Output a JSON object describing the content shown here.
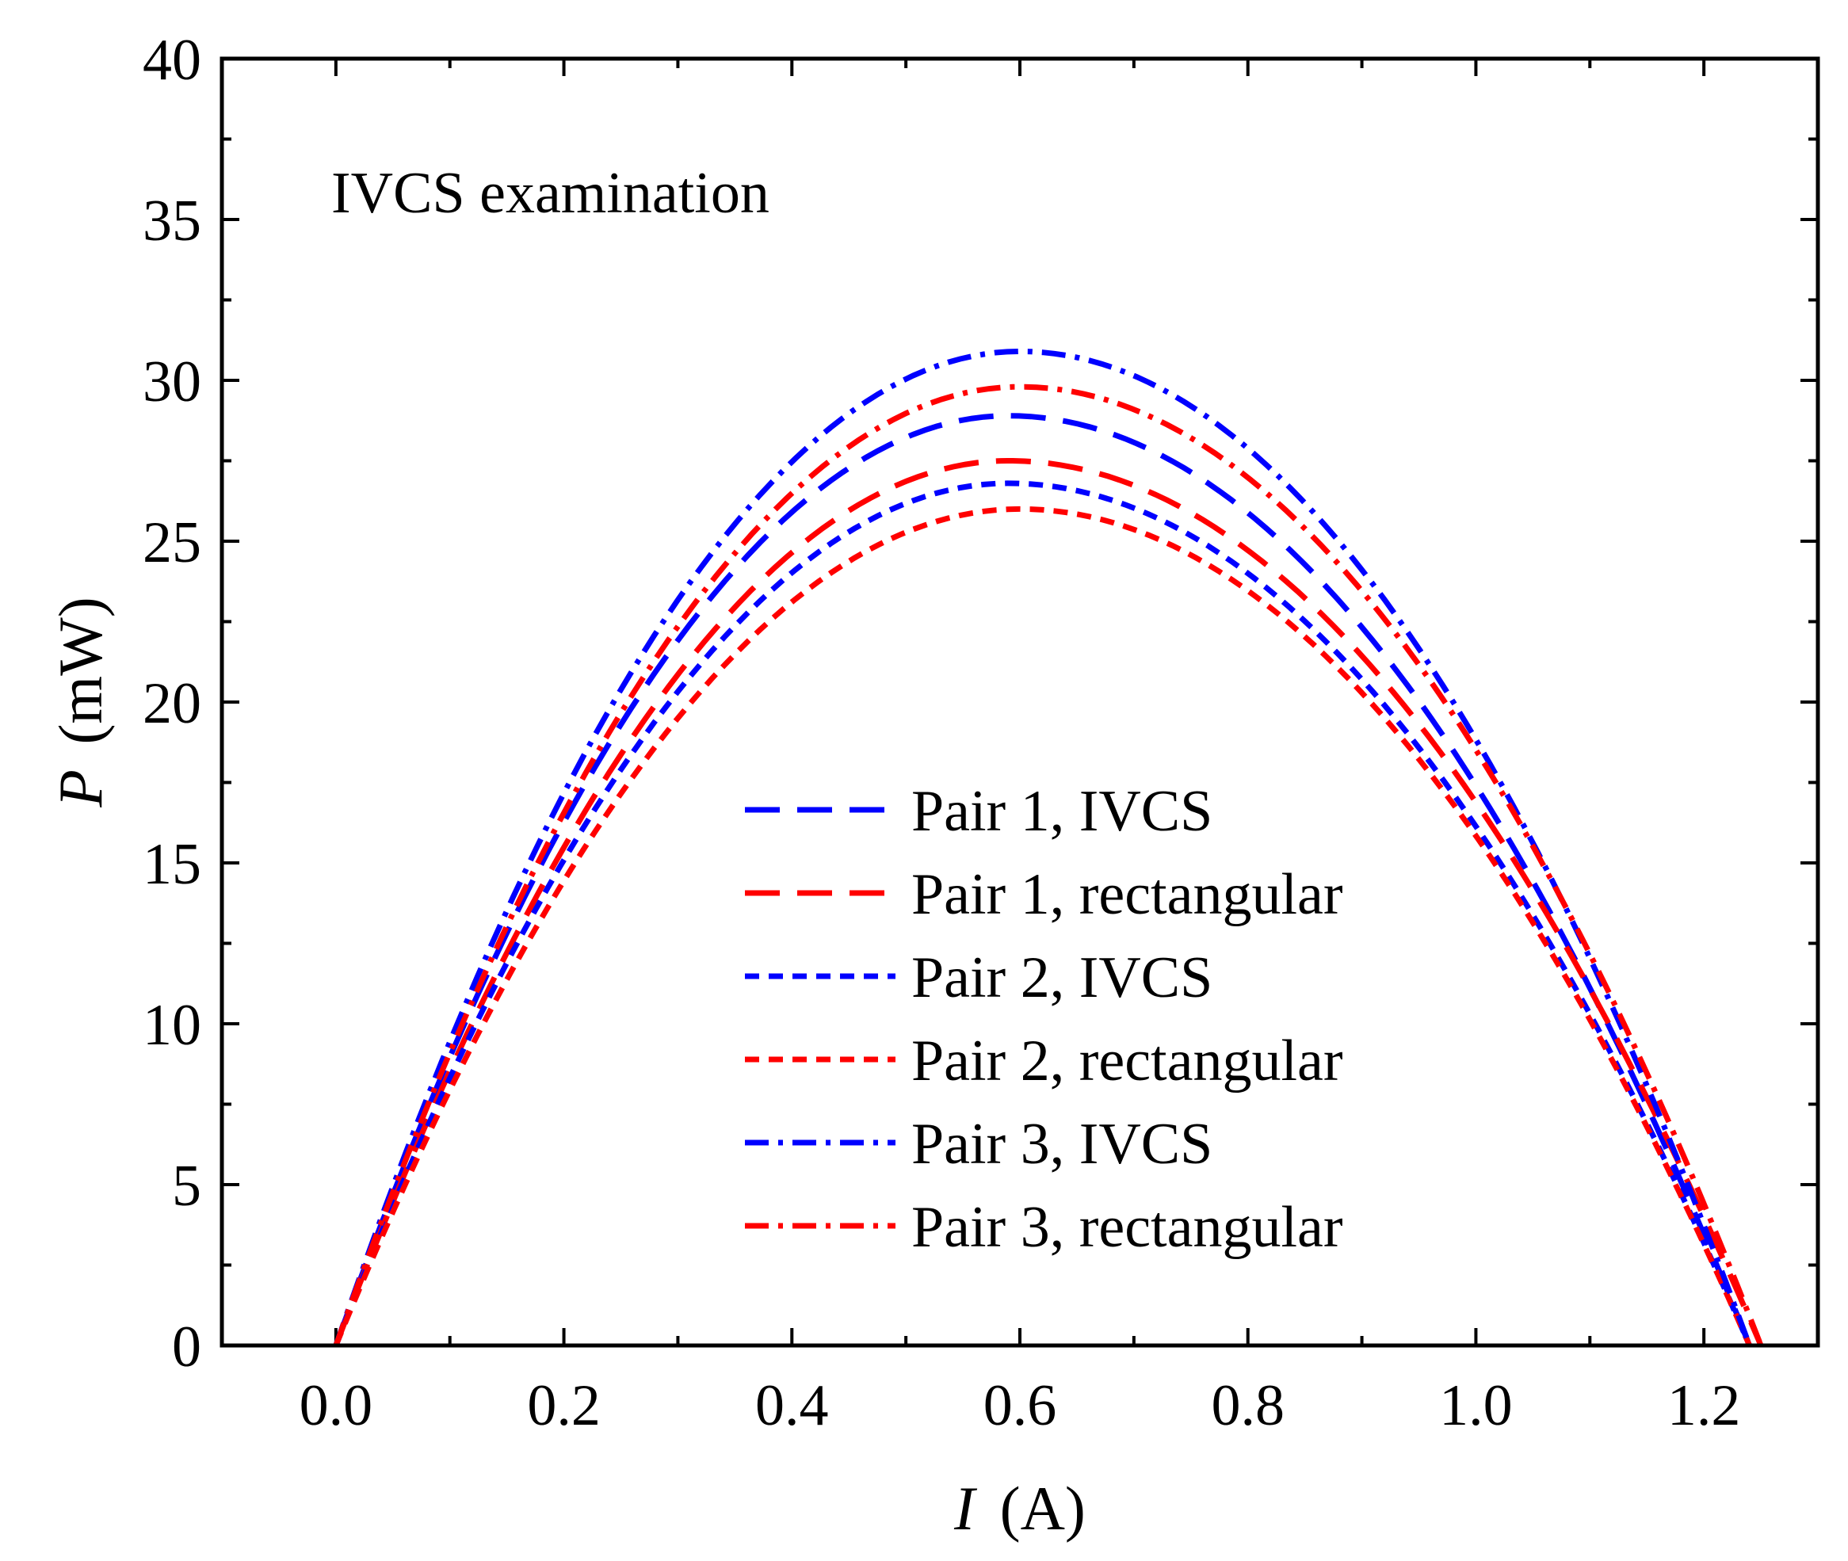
{
  "chart_data": {
    "type": "line",
    "annotation": "IVCS examination",
    "xlabel": {
      "symbol": "I",
      "unit": "(A)"
    },
    "ylabel": {
      "symbol": "P",
      "unit": "(mW)"
    },
    "xlim": [
      -0.1,
      1.3
    ],
    "ylim": [
      0,
      40
    ],
    "xticks": [
      0.0,
      0.2,
      0.4,
      0.6,
      0.8,
      1.0,
      1.2
    ],
    "xtick_labels": [
      "0.0",
      "0.2",
      "0.4",
      "0.6",
      "0.8",
      "1.0",
      "1.2"
    ],
    "yticks": [
      0,
      5,
      10,
      15,
      20,
      25,
      30,
      35,
      40
    ],
    "ytick_labels": [
      "0",
      "5",
      "10",
      "15",
      "20",
      "25",
      "30",
      "35",
      "40"
    ],
    "legend_position": "center-right",
    "grid": false,
    "series": [
      {
        "name": "Pair 1, IVCS",
        "color": "#0000ff",
        "style": "dash",
        "peak_x": 0.59,
        "peak_y": 28.9,
        "x_end": 1.24
      },
      {
        "name": "Pair 1, rectangular",
        "color": "#ff0000",
        "style": "dash",
        "peak_x": 0.59,
        "peak_y": 27.5,
        "x_end": 1.25
      },
      {
        "name": "Pair 2, IVCS",
        "color": "#0000ff",
        "style": "short-dash",
        "peak_x": 0.59,
        "peak_y": 26.8,
        "x_end": 1.24
      },
      {
        "name": "Pair 2, rectangular",
        "color": "#ff0000",
        "style": "short-dash",
        "peak_x": 0.6,
        "peak_y": 26.0,
        "x_end": 1.24
      },
      {
        "name": "Pair 3, IVCS",
        "color": "#0000ff",
        "style": "dash-dot",
        "peak_x": 0.6,
        "peak_y": 30.9,
        "x_end": 1.24
      },
      {
        "name": "Pair 3, rectangular",
        "color": "#ff0000",
        "style": "dash-dot",
        "peak_x": 0.6,
        "peak_y": 29.8,
        "x_end": 1.25
      }
    ]
  }
}
